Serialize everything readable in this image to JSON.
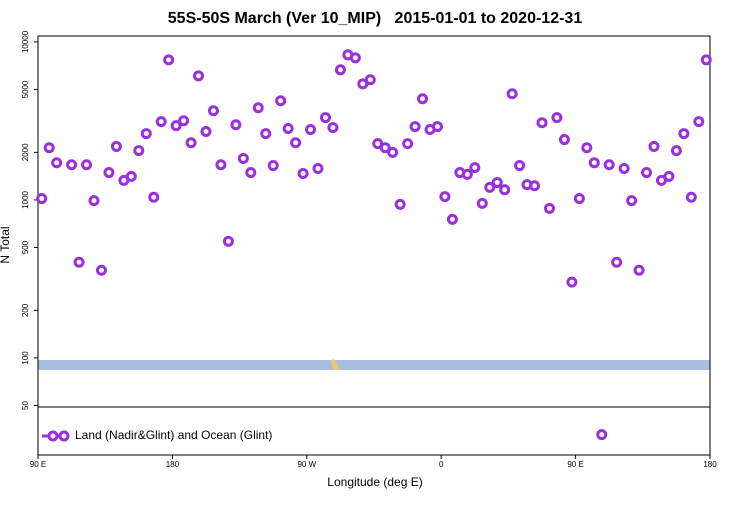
{
  "chart_data": {
    "type": "scatter",
    "title": "55S-50S March (Ver 10_MIP)   2015-01-01 to 2020-12-31",
    "xlabel": "Longitude (deg E)",
    "ylabel": "N Total",
    "x": [
      92.5,
      97.5,
      102.5,
      112.5,
      117.5,
      122.5,
      127.5,
      132.5,
      137.5,
      142.5,
      147.5,
      152.5,
      157.5,
      162.5,
      167.5,
      172.5,
      177.5,
      182.5,
      187.5,
      192.5,
      197.5,
      202.5,
      207.5,
      212.5,
      217.5,
      222.5,
      227.5,
      232.5,
      237.5,
      242.5,
      247.5,
      252.5,
      257.5,
      262.5,
      267.5,
      272.5,
      277.5,
      282.5,
      287.5,
      292.5,
      297.5,
      302.5,
      307.5,
      312.5,
      317.5,
      322.5,
      327.5,
      332.5,
      337.5,
      342.5,
      347.5,
      352.5,
      357.5,
      362.5,
      367.5,
      372.5,
      377.5,
      382.5,
      387.5,
      392.5,
      397.5,
      402.5,
      407.5,
      412.5,
      417.5,
      422.5,
      427.5,
      432.5,
      437.5,
      442.5,
      447.5,
      452.5,
      457.5,
      462.5,
      467.5,
      472.5,
      477.5,
      482.5,
      487.5,
      492.5,
      497.5,
      502.5,
      507.5,
      512.5,
      517.5,
      522.5,
      527.5,
      532.5,
      537.5
    ],
    "series": [
      {
        "name": "Land (Nadir&Glint) and Ocean (Glint)",
        "color": "#9a2fe0",
        "values": [
          1020,
          2140,
          1720,
          1670,
          403,
          1670,
          990,
          359,
          1490,
          2180,
          1330,
          1410,
          2050,
          2630,
          1040,
          3130,
          7700,
          2950,
          3170,
          2300,
          6100,
          2710,
          3670,
          1670,
          547,
          2990,
          1830,
          1490,
          3830,
          2630,
          1650,
          4240,
          2830,
          2300,
          1470,
          2790,
          1580,
          3320,
          2870,
          6660,
          8280,
          7930,
          5430,
          5760,
          2270,
          2140,
          2000,
          937,
          2270,
          2910,
          4370,
          2790,
          2910,
          1050,
          753,
          1490,
          1450,
          1600,
          951,
          1200,
          1290,
          1160,
          4700,
          1650,
          1250,
          1230,
          3080,
          884,
          3320,
          2410,
          302,
          1020,
          2140,
          1720,
          32.7,
          1670,
          403,
          1580,
          990,
          359,
          1490,
          2180,
          1330,
          1410,
          2050,
          2630,
          1040,
          3130,
          7700
        ]
      }
    ],
    "xlim": [
      90,
      540
    ],
    "xticks": [
      {
        "value": 90,
        "label": "90 E"
      },
      {
        "value": 180,
        "label": "180"
      },
      {
        "value": 270,
        "label": "90 W"
      },
      {
        "value": 360,
        "label": "0"
      },
      {
        "value": 450,
        "label": "90 E"
      },
      {
        "value": 540,
        "label": "180"
      }
    ],
    "ylim": [
      24.3,
      10900
    ],
    "yscale": "log",
    "yticks": [
      50,
      100,
      200,
      500,
      1000,
      2000,
      5000,
      10000
    ]
  }
}
